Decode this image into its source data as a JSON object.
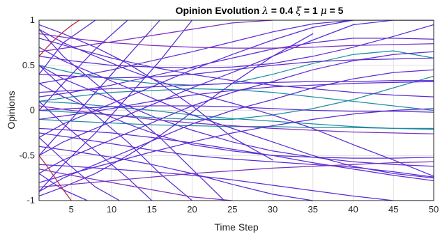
{
  "chart_data": {
    "type": "line",
    "title": "Opinion Evolution",
    "title_params": [
      {
        "symbol": "λ",
        "value": "0.4"
      },
      {
        "symbol": "ξ",
        "value": "1"
      },
      {
        "symbol": "μ",
        "value": "5"
      }
    ],
    "xlabel": "Time Step",
    "ylabel": "Opinions",
    "xlim": [
      1,
      50
    ],
    "ylim": [
      -1,
      1
    ],
    "xticks": [
      5,
      10,
      15,
      20,
      25,
      30,
      35,
      40,
      45,
      50
    ],
    "yticks": [
      -1,
      -0.5,
      0,
      0.5,
      1
    ],
    "ytick_labels": [
      "-1",
      "-0.5",
      "0",
      "0.5",
      "1"
    ],
    "grid": true,
    "colors": {
      "purple": "#5a2bd6",
      "teal": "#1e8c9e",
      "red": "#b5224c",
      "green": "#5fdc3a",
      "violet": "#7b2fbe"
    },
    "series": [
      {
        "color": "#5fdc3a",
        "x": [
          1,
          10,
          20,
          30,
          40,
          50
        ],
        "y": [
          1,
          1,
          1,
          1,
          1,
          1
        ]
      },
      {
        "color": "#1e8c9e",
        "x": [
          1,
          5,
          10,
          15,
          20,
          25,
          30,
          35,
          40,
          45,
          50
        ],
        "y": [
          0.1,
          0.08,
          0.04,
          0.0,
          -0.05,
          -0.09,
          -0.12,
          -0.15,
          -0.18,
          -0.2,
          -0.2
        ]
      },
      {
        "color": "#1e8c9e",
        "x": [
          1,
          5,
          10,
          15,
          20,
          25,
          30,
          35,
          40,
          45,
          50
        ],
        "y": [
          -0.1,
          -0.12,
          -0.14,
          -0.16,
          -0.17,
          -0.18,
          -0.18,
          -0.19,
          -0.19,
          -0.2,
          -0.21
        ]
      },
      {
        "color": "#1e8c9e",
        "x": [
          1,
          5,
          10,
          15,
          20,
          25,
          30,
          35,
          40,
          45,
          50
        ],
        "y": [
          0.1,
          0.15,
          0.2,
          0.22,
          0.24,
          0.23,
          0.2,
          0.15,
          0.1,
          0.05,
          0.0
        ]
      },
      {
        "color": "#1e8c9e",
        "x": [
          1,
          5,
          10,
          15,
          20,
          25,
          30,
          35,
          40,
          45,
          50
        ],
        "y": [
          0.5,
          0.42,
          0.35,
          0.3,
          0.28,
          0.3,
          0.4,
          0.52,
          0.62,
          0.66,
          0.58
        ]
      },
      {
        "color": "#1e8c9e",
        "x": [
          1,
          5,
          10,
          15,
          20,
          25,
          30,
          35,
          40,
          45,
          50
        ],
        "y": [
          0.0,
          -0.02,
          -0.05,
          -0.08,
          -0.1,
          -0.1,
          -0.05,
          0.02,
          0.12,
          0.25,
          0.38
        ]
      },
      {
        "color": "#5a2bd6",
        "x": [
          1,
          4,
          8,
          12,
          16,
          20,
          25,
          30,
          35,
          40,
          45,
          50
        ],
        "y": [
          0.9,
          0.75,
          0.6,
          0.45,
          0.32,
          0.2,
          0.08,
          -0.05,
          -0.2,
          -0.38,
          -0.55,
          -0.73
        ]
      },
      {
        "color": "#5a2bd6",
        "x": [
          1,
          4,
          8,
          12,
          16,
          20,
          25,
          30,
          35,
          40,
          45,
          50
        ],
        "y": [
          0.7,
          0.55,
          0.4,
          0.25,
          0.1,
          -0.05,
          -0.2,
          -0.35,
          -0.5,
          -0.62,
          -0.7,
          -0.75
        ]
      },
      {
        "color": "#5a2bd6",
        "x": [
          1,
          4,
          8,
          12,
          16,
          20,
          25,
          30,
          35,
          40,
          45,
          50
        ],
        "y": [
          0.5,
          0.35,
          0.2,
          0.05,
          -0.1,
          -0.22,
          -0.35,
          -0.45,
          -0.52,
          -0.57,
          -0.6,
          -0.62
        ]
      },
      {
        "color": "#5a2bd6",
        "x": [
          1,
          4,
          8,
          12,
          16,
          20,
          25,
          30,
          35,
          40,
          45,
          50
        ],
        "y": [
          0.3,
          0.15,
          0.0,
          -0.15,
          -0.28,
          -0.38,
          -0.45,
          -0.5,
          -0.52,
          -0.53,
          -0.53,
          -0.52
        ]
      },
      {
        "color": "#5a2bd6",
        "x": [
          1,
          4,
          8,
          12,
          16,
          20,
          25,
          30,
          35,
          40,
          45,
          50
        ],
        "y": [
          -0.3,
          -0.15,
          0.0,
          0.15,
          0.3,
          0.45,
          0.62,
          0.78,
          0.92,
          1,
          1,
          1
        ]
      },
      {
        "color": "#5a2bd6",
        "x": [
          1,
          4,
          8,
          12,
          16,
          20,
          25,
          30,
          35,
          40,
          45,
          50
        ],
        "y": [
          -0.5,
          -0.35,
          -0.2,
          -0.05,
          0.1,
          0.25,
          0.42,
          0.6,
          0.78,
          0.95,
          1,
          1
        ]
      },
      {
        "color": "#5a2bd6",
        "x": [
          1,
          4,
          8,
          12,
          16,
          20,
          25,
          30,
          35,
          40,
          45,
          50
        ],
        "y": [
          -0.7,
          -0.55,
          -0.4,
          -0.25,
          -0.1,
          0.05,
          0.2,
          0.32,
          0.45,
          0.55,
          0.62,
          0.65
        ]
      },
      {
        "color": "#5a2bd6",
        "x": [
          1,
          4,
          8,
          12,
          16,
          20,
          25,
          30,
          35,
          40,
          45,
          50
        ],
        "y": [
          -0.9,
          -0.75,
          -0.6,
          -0.45,
          -0.3,
          -0.15,
          0.0,
          0.12,
          0.25,
          0.35,
          0.42,
          0.45
        ]
      },
      {
        "color": "#5a2bd6",
        "x": [
          1,
          4,
          8,
          12,
          16,
          20,
          24
        ],
        "y": [
          0.9,
          0.6,
          0.3,
          0.0,
          -0.3,
          -0.65,
          -1
        ]
      },
      {
        "color": "#5a2bd6",
        "x": [
          1,
          4,
          8,
          12,
          16,
          20
        ],
        "y": [
          0.5,
          0.25,
          -0.05,
          -0.35,
          -0.7,
          -1
        ]
      },
      {
        "color": "#5a2bd6",
        "x": [
          1,
          4,
          8,
          12,
          15
        ],
        "y": [
          0.1,
          -0.15,
          -0.45,
          -0.75,
          -1
        ]
      },
      {
        "color": "#5a2bd6",
        "x": [
          1,
          4,
          8,
          11
        ],
        "y": [
          -0.3,
          -0.55,
          -0.85,
          -1
        ]
      },
      {
        "color": "#5a2bd6",
        "x": [
          1,
          4,
          7
        ],
        "y": [
          -0.7,
          -0.88,
          -1
        ]
      },
      {
        "color": "#5a2bd6",
        "x": [
          1,
          4,
          8,
          12,
          16,
          20
        ],
        "y": [
          -0.9,
          -0.6,
          -0.25,
          0.15,
          0.55,
          1
        ]
      },
      {
        "color": "#5a2bd6",
        "x": [
          1,
          4,
          8,
          12,
          16
        ],
        "y": [
          -0.5,
          -0.2,
          0.2,
          0.6,
          1
        ]
      },
      {
        "color": "#5a2bd6",
        "x": [
          1,
          4,
          8,
          12
        ],
        "y": [
          0.0,
          0.3,
          0.68,
          1
        ]
      },
      {
        "color": "#5a2bd6",
        "x": [
          1,
          4,
          8
        ],
        "y": [
          0.4,
          0.75,
          1
        ]
      },
      {
        "color": "#5a2bd6",
        "x": [
          1,
          5,
          10,
          15,
          20,
          25,
          30,
          35,
          40,
          45,
          50
        ],
        "y": [
          0.6,
          0.55,
          0.5,
          0.48,
          0.47,
          0.48,
          0.52,
          0.6,
          0.7,
          0.82,
          0.95
        ]
      },
      {
        "color": "#5a2bd6",
        "x": [
          1,
          5,
          10,
          15,
          20,
          25,
          30,
          35,
          40,
          45,
          50
        ],
        "y": [
          -0.6,
          -0.62,
          -0.65,
          -0.68,
          -0.72,
          -0.77,
          -0.83,
          -0.89,
          -0.95,
          -1,
          -1
        ]
      },
      {
        "color": "#5a2bd6",
        "x": [
          1,
          5,
          10,
          15,
          20,
          25,
          30,
          35,
          40,
          45,
          50
        ],
        "y": [
          0.2,
          0.22,
          0.24,
          0.26,
          0.28,
          0.3,
          0.31,
          0.32,
          0.32,
          0.33,
          0.33
        ]
      },
      {
        "color": "#5a2bd6",
        "x": [
          1,
          5,
          10,
          15,
          20,
          25,
          30,
          35,
          40,
          45,
          50
        ],
        "y": [
          -0.2,
          -0.22,
          -0.25,
          -0.3,
          -0.36,
          -0.43,
          -0.5,
          -0.58,
          -0.65,
          -0.72,
          -0.78
        ]
      },
      {
        "color": "#5a2bd6",
        "x": [
          1,
          5,
          10,
          15,
          20,
          25,
          30,
          35,
          40,
          45,
          50
        ],
        "y": [
          0.0,
          0.02,
          0.04,
          0.05,
          0.05,
          0.04,
          0.02,
          0.0,
          -0.01,
          -0.01,
          -0.02
        ]
      },
      {
        "color": "#5a2bd6",
        "x": [
          1,
          5,
          10,
          15,
          20,
          25,
          30,
          35,
          40,
          45,
          50
        ],
        "y": [
          0.8,
          0.7,
          0.58,
          0.48,
          0.4,
          0.33,
          0.28,
          0.24,
          0.2,
          0.17,
          0.15
        ]
      },
      {
        "color": "#5a2bd6",
        "x": [
          1,
          5,
          10,
          15,
          20,
          25,
          30,
          35,
          40,
          45,
          50
        ],
        "y": [
          -0.8,
          -0.7,
          -0.58,
          -0.46,
          -0.35,
          -0.25,
          -0.17,
          -0.1,
          -0.04,
          0.0,
          0.02
        ]
      },
      {
        "color": "#5a2bd6",
        "x": [
          1,
          5,
          10,
          15,
          20,
          25,
          30,
          35,
          40
        ],
        "y": [
          0.3,
          0.36,
          0.45,
          0.55,
          0.65,
          0.76,
          0.87,
          0.96,
          1
        ]
      },
      {
        "color": "#5a2bd6",
        "x": [
          1,
          5,
          10,
          15,
          20,
          25,
          30,
          35
        ],
        "y": [
          -0.4,
          -0.45,
          -0.52,
          -0.6,
          -0.7,
          -0.82,
          -0.93,
          -1
        ]
      },
      {
        "color": "#5a2bd6",
        "x": [
          1,
          5,
          10,
          15,
          20,
          25,
          30,
          35,
          40,
          45,
          50
        ],
        "y": [
          0.4,
          0.38,
          0.36,
          0.37,
          0.4,
          0.45,
          0.5,
          0.54,
          0.56,
          0.57,
          0.58
        ]
      },
      {
        "color": "#5a2bd6",
        "x": [
          1,
          5,
          10,
          15,
          20,
          25,
          30,
          35,
          40,
          45,
          50
        ],
        "y": [
          -0.1,
          -0.05,
          0.02,
          0.1,
          0.17,
          0.22,
          0.26,
          0.28,
          0.3,
          0.31,
          0.32
        ]
      },
      {
        "color": "#5a2bd6",
        "x": [
          1,
          5,
          10,
          15,
          20,
          25,
          30,
          35,
          40,
          45,
          50
        ],
        "y": [
          0.15,
          0.2,
          0.28,
          0.38,
          0.48,
          0.58,
          0.68,
          0.75,
          0.8,
          0.8,
          0.79
        ]
      },
      {
        "color": "#5a2bd6",
        "x": [
          1,
          5,
          10,
          15,
          20,
          25,
          30,
          35,
          40,
          45,
          50
        ],
        "y": [
          -0.25,
          -0.3,
          -0.37,
          -0.44,
          -0.5,
          -0.54,
          -0.57,
          -0.6,
          -0.63,
          -0.68,
          -0.74
        ]
      },
      {
        "color": "#5a2bd6",
        "x": [
          1,
          4,
          8,
          12,
          16,
          20,
          25,
          30
        ],
        "y": [
          0.95,
          0.85,
          0.7,
          0.52,
          0.3,
          0.05,
          -0.3,
          -0.55
        ]
      },
      {
        "color": "#5a2bd6",
        "x": [
          1,
          4,
          8,
          12,
          16,
          20,
          25,
          30,
          35
        ],
        "y": [
          -0.95,
          -0.85,
          -0.7,
          -0.5,
          -0.28,
          -0.02,
          0.3,
          0.6,
          0.85
        ]
      },
      {
        "color": "#7b2fbe",
        "x": [
          1,
          5,
          10,
          15,
          20,
          25,
          30,
          35,
          40,
          45,
          50
        ],
        "y": [
          0.85,
          0.8,
          0.75,
          0.72,
          0.7,
          0.69,
          0.69,
          0.7,
          0.72,
          0.73,
          0.74
        ]
      },
      {
        "color": "#7b2fbe",
        "x": [
          1,
          5,
          10,
          15,
          20,
          25,
          30,
          35,
          40,
          45,
          50
        ],
        "y": [
          -0.85,
          -0.82,
          -0.78,
          -0.74,
          -0.7,
          -0.67,
          -0.64,
          -0.62,
          -0.6,
          -0.58,
          -0.57
        ]
      },
      {
        "color": "#7b2fbe",
        "x": [
          1,
          5,
          10,
          15,
          20,
          25,
          30,
          35,
          40,
          45,
          50
        ],
        "y": [
          0.05,
          0.0,
          -0.05,
          -0.1,
          -0.14,
          -0.17,
          -0.2,
          -0.22,
          -0.24,
          -0.25,
          -0.26
        ]
      },
      {
        "color": "#7b2fbe",
        "x": [
          1,
          5,
          10,
          15,
          20,
          25,
          30
        ],
        "y": [
          0.65,
          0.7,
          0.76,
          0.83,
          0.9,
          0.97,
          1
        ]
      },
      {
        "color": "#7b2fbe",
        "x": [
          1,
          5,
          10,
          15,
          20,
          25
        ],
        "y": [
          -0.65,
          -0.72,
          -0.8,
          -0.88,
          -0.96,
          -1
        ]
      },
      {
        "color": "#b5224c",
        "x": [
          1,
          2,
          3,
          4,
          5
        ],
        "y": [
          -0.5,
          -0.62,
          -0.75,
          -0.88,
          -1
        ]
      },
      {
        "color": "#b5224c",
        "x": [
          1,
          2,
          3,
          4,
          5,
          6
        ],
        "y": [
          0.6,
          0.7,
          0.79,
          0.87,
          0.94,
          1
        ]
      }
    ]
  }
}
